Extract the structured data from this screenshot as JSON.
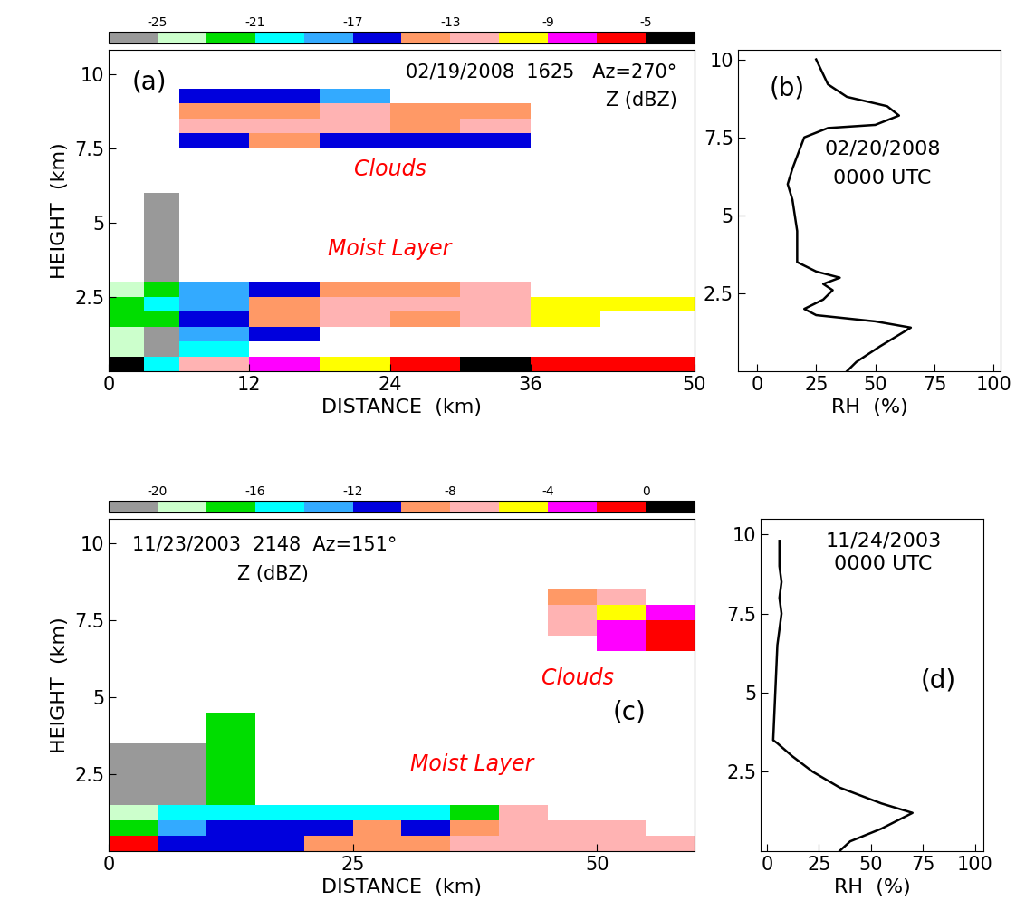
{
  "chart_data": [
    {
      "type": "heatmap",
      "panel_label": "(a)",
      "header": "02/19/2008  1625   Az=270°",
      "subheader": "Z (dBZ)",
      "labels": [
        "Clouds",
        "Moist Layer"
      ],
      "x_label": "DISTANCE  (km)",
      "y_label": "HEIGHT  (km)",
      "xlim": [
        0,
        50
      ],
      "xticks": [
        0,
        12,
        24,
        36,
        50
      ],
      "ylim": [
        0,
        10.8
      ],
      "yticks": [
        2.5,
        5,
        7.5,
        10
      ],
      "x_edges": [
        0,
        3,
        6,
        12,
        18,
        24,
        30,
        36,
        42,
        50
      ],
      "y_edges": [
        0,
        0.5,
        1.0,
        1.5,
        2.0,
        2.5,
        3.0,
        3.5,
        4.0,
        4.5,
        5.0,
        5.5,
        6.0,
        6.5,
        7.0,
        7.5,
        8.0,
        8.5,
        9.0,
        9.5
      ],
      "cells": [
        [
          -4,
          -20,
          -12,
          -8,
          -10,
          -6,
          -4,
          -6,
          -6
        ],
        [
          -24,
          -26,
          -20,
          null,
          null,
          null,
          null,
          null,
          null
        ],
        [
          -24,
          -26,
          -18,
          -16,
          null,
          null,
          null,
          null,
          null
        ],
        [
          -22,
          -22,
          -16,
          -14,
          -13,
          -14,
          -12,
          -11,
          null
        ],
        [
          -22,
          -20,
          -18,
          -15,
          -13,
          -13,
          -13,
          -10,
          -10
        ],
        [
          -24,
          -22,
          -18,
          -16,
          -15,
          -14,
          -12,
          null,
          null
        ],
        [
          null,
          -26,
          null,
          null,
          null,
          null,
          null,
          null,
          null
        ],
        [
          null,
          -26,
          null,
          null,
          null,
          null,
          null,
          null,
          null
        ],
        [
          null,
          -26,
          null,
          null,
          null,
          null,
          null,
          null,
          null
        ],
        [
          null,
          -26,
          null,
          null,
          null,
          null,
          null,
          null,
          null
        ],
        [
          null,
          -26,
          null,
          null,
          null,
          null,
          null,
          null,
          null
        ],
        [
          null,
          -26,
          null,
          null,
          null,
          null,
          null,
          null,
          null
        ],
        [
          null,
          null,
          null,
          null,
          null,
          null,
          null,
          null,
          null
        ],
        [
          null,
          null,
          null,
          null,
          null,
          null,
          null,
          null,
          null
        ],
        [
          null,
          null,
          null,
          null,
          null,
          null,
          null,
          null,
          null
        ],
        [
          null,
          null,
          -16,
          -15,
          -16,
          -16,
          -17,
          null,
          null
        ],
        [
          null,
          null,
          -13,
          -13,
          -13,
          -14,
          -13,
          null,
          null
        ],
        [
          null,
          null,
          -14,
          -14,
          -13,
          -14,
          -15,
          null,
          null
        ],
        [
          null,
          null,
          -17,
          -17,
          -18,
          null,
          null,
          null,
          null
        ]
      ],
      "colorbar": {
        "range": [
          -27,
          -3
        ],
        "ticks": [
          -25,
          -21,
          -17,
          -13,
          -9,
          -5
        ],
        "colors": [
          "#999999",
          "#ccffcc",
          "#00dd00",
          "#00ffff",
          "#33aaff",
          "#0000dd",
          "#ff9966",
          "#ffb3b3",
          "#ffff00",
          "#ff00ff",
          "#ff0000",
          "#000000"
        ]
      }
    },
    {
      "type": "line",
      "panel_label": "(b)",
      "date": "02/20/2008",
      "time": "0000 UTC",
      "x_label": "RH  (%)",
      "color": "#000000",
      "xlim": [
        -8,
        103
      ],
      "xticks": [
        0,
        25,
        50,
        75,
        100
      ],
      "ylim": [
        0,
        10.3
      ],
      "yticks": [
        2.5,
        5,
        7.5,
        10
      ],
      "x": [
        38,
        42,
        52,
        65,
        50,
        25,
        20,
        28,
        32,
        28,
        35,
        25,
        17,
        17,
        15,
        13,
        15,
        20,
        30,
        50,
        60,
        55,
        38,
        30,
        25
      ],
      "y": [
        0,
        0.3,
        0.8,
        1.4,
        1.6,
        1.8,
        2.0,
        2.3,
        2.6,
        2.8,
        3.0,
        3.2,
        3.5,
        4.5,
        5.5,
        6.0,
        6.5,
        7.5,
        7.8,
        7.9,
        8.2,
        8.5,
        8.8,
        9.2,
        10.0
      ]
    },
    {
      "type": "heatmap",
      "panel_label": "(c)",
      "header": "11/23/2003  2148  Az=151°",
      "subheader": "Z (dBZ)",
      "labels": [
        "Clouds",
        "Moist Layer"
      ],
      "x_label": "DISTANCE  (km)",
      "y_label": "HEIGHT  (km)",
      "xlim": [
        0,
        60
      ],
      "xticks": [
        0,
        25,
        50
      ],
      "ylim": [
        0,
        10.8
      ],
      "yticks": [
        2.5,
        5,
        7.5,
        10
      ],
      "x_edges": [
        0,
        5,
        10,
        15,
        20,
        25,
        30,
        35,
        40,
        45,
        50,
        55,
        60
      ],
      "y_edges": [
        0,
        0.5,
        1.0,
        1.5,
        2.0,
        2.5,
        3.0,
        3.5,
        4.0,
        4.5,
        5.0,
        5.5,
        6.0,
        6.5,
        7.0,
        7.5,
        8.0,
        8.5
      ],
      "cells": [
        [
          -1,
          -12,
          -12,
          -12,
          -10,
          -10,
          -10,
          -8,
          -8,
          -7,
          -7,
          -7
        ],
        [
          -18,
          -14,
          -12,
          -12,
          -12,
          -10,
          -12,
          -9,
          -8,
          -8,
          -8,
          null
        ],
        [
          -20,
          -16,
          -16,
          -15,
          -16,
          -15,
          -16,
          -17,
          -8,
          null,
          null,
          null
        ],
        [
          -21,
          -21,
          -18,
          null,
          null,
          null,
          null,
          null,
          null,
          null,
          null,
          null
        ],
        [
          -21,
          -21,
          -18,
          null,
          null,
          null,
          null,
          null,
          null,
          null,
          null,
          null
        ],
        [
          -21,
          -21,
          -18,
          null,
          null,
          null,
          null,
          null,
          null,
          null,
          null,
          null
        ],
        [
          -21,
          -21,
          -18,
          null,
          null,
          null,
          null,
          null,
          null,
          null,
          null,
          null
        ],
        [
          null,
          null,
          -18,
          null,
          null,
          null,
          null,
          null,
          null,
          null,
          null,
          null
        ],
        [
          null,
          null,
          -18,
          null,
          null,
          null,
          null,
          null,
          null,
          null,
          null,
          null
        ],
        [
          null,
          null,
          null,
          null,
          null,
          null,
          null,
          null,
          null,
          null,
          null,
          null
        ],
        [
          null,
          null,
          null,
          null,
          null,
          null,
          null,
          null,
          null,
          null,
          null,
          null
        ],
        [
          null,
          null,
          null,
          null,
          null,
          null,
          null,
          null,
          null,
          null,
          null,
          null
        ],
        [
          null,
          null,
          null,
          null,
          null,
          null,
          null,
          null,
          null,
          null,
          null,
          null
        ],
        [
          null,
          null,
          null,
          null,
          null,
          null,
          null,
          null,
          null,
          null,
          -4,
          -1
        ],
        [
          null,
          null,
          null,
          null,
          null,
          null,
          null,
          null,
          null,
          -8,
          -4,
          -2
        ],
        [
          null,
          null,
          null,
          null,
          null,
          null,
          null,
          null,
          null,
          -8,
          -6,
          -4
        ],
        [
          null,
          null,
          null,
          null,
          null,
          null,
          null,
          null,
          null,
          -9,
          -8,
          null
        ]
      ],
      "colorbar": {
        "range": [
          -22,
          2
        ],
        "ticks": [
          -20,
          -16,
          -12,
          -8,
          -4,
          0
        ],
        "colors": [
          "#999999",
          "#ccffcc",
          "#00dd00",
          "#00ffff",
          "#33aaff",
          "#0000dd",
          "#ff9966",
          "#ffb3b3",
          "#ffff00",
          "#ff00ff",
          "#ff0000",
          "#000000"
        ]
      }
    },
    {
      "type": "line",
      "panel_label": "(d)",
      "date": "11/24/2003",
      "time": "0000 UTC",
      "x_label": "RH  (%)",
      "color": "#000000",
      "xlim": [
        -3,
        104
      ],
      "xticks": [
        0,
        25,
        50,
        75,
        100
      ],
      "ylim": [
        0,
        10.5
      ],
      "yticks": [
        2.5,
        5,
        7.5,
        10
      ],
      "x": [
        35,
        40,
        55,
        70,
        55,
        35,
        22,
        12,
        5,
        3,
        4,
        5,
        6,
        7,
        6,
        7,
        6,
        6,
        6
      ],
      "y": [
        0,
        0.3,
        0.7,
        1.2,
        1.5,
        2.0,
        2.5,
        3.0,
        3.4,
        3.5,
        5.0,
        6.5,
        7.0,
        7.5,
        8.0,
        8.5,
        9.0,
        9.5,
        9.8
      ]
    }
  ]
}
